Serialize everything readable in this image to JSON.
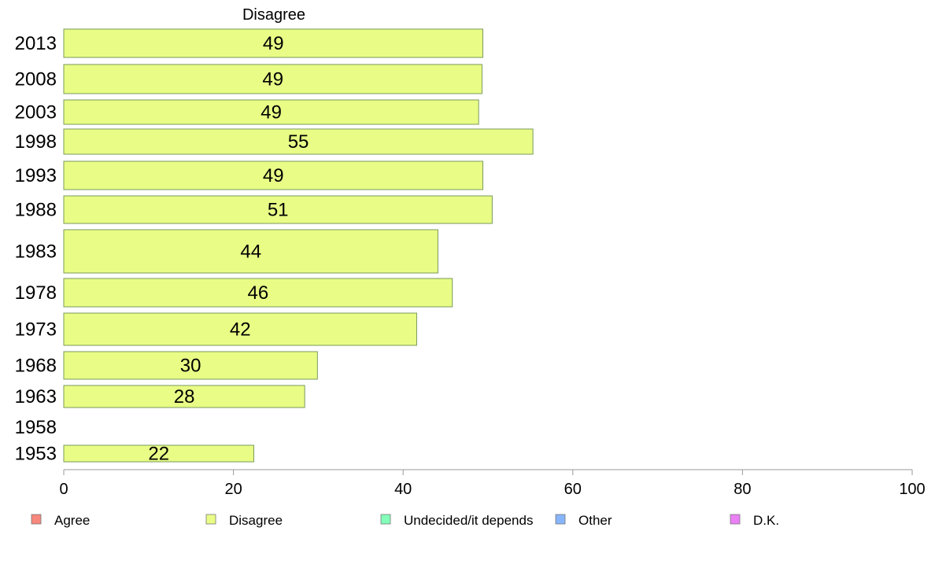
{
  "chart_data": {
    "type": "bar",
    "orientation": "horizontal",
    "panel_title": "Disagree",
    "categories": [
      "2013",
      "2008",
      "2003",
      "1998",
      "1993",
      "1988",
      "1983",
      "1978",
      "1973",
      "1968",
      "1963",
      "1958",
      "1953"
    ],
    "values": [
      49.4,
      49.3,
      48.9,
      55.3,
      49.4,
      50.5,
      44.1,
      45.8,
      41.6,
      29.9,
      28.4,
      null,
      22.4
    ],
    "value_labels": [
      "49",
      "49",
      "49",
      "55",
      "49",
      "51",
      "44",
      "46",
      "42",
      "30",
      "28",
      "",
      "22"
    ],
    "xlim": [
      0,
      100
    ],
    "xticks": [
      "0",
      "20",
      "40",
      "60",
      "80",
      "100"
    ],
    "grid": false,
    "legend_position": "bottom",
    "legend": [
      {
        "label": "Agree",
        "color": "#f8877d"
      },
      {
        "label": "Disagree",
        "color": "#e9fd86"
      },
      {
        "label": "Undecided/it depends",
        "color": "#83ffb9"
      },
      {
        "label": "Other",
        "color": "#87b5fb"
      },
      {
        "label": "D.K.",
        "color": "#ea7ff6"
      }
    ],
    "bar_color": "#e9fd86",
    "bar_stroke": "#7a9a5a",
    "axis_color": "#999999"
  }
}
